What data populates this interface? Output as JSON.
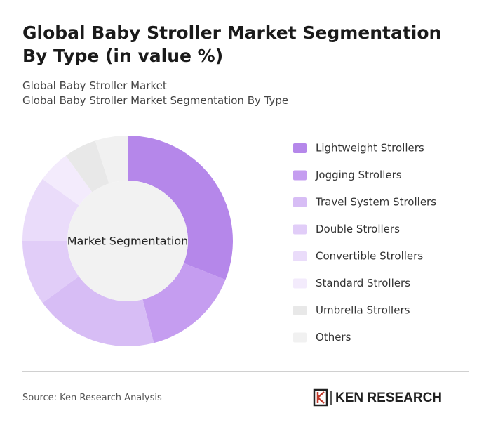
{
  "header": {
    "title": "Global Baby Stroller Market Segmentation By Type (in value %)",
    "subtitle_lines": [
      "Global Baby Stroller Market",
      "Global Baby Stroller Market Segmentation By Type"
    ]
  },
  "chart_data": {
    "type": "donut",
    "center_label": "Market Segmentation",
    "categories": [
      "Lightweight Strollers",
      "Jogging Strollers",
      "Travel System Strollers",
      "Double Strollers",
      "Convertible Strollers",
      "Standard Strollers",
      "Umbrella Strollers",
      "Others"
    ],
    "values": [
      31,
      15,
      19,
      10,
      10,
      5,
      5,
      5
    ],
    "colors": [
      "#b587ea",
      "#c59df0",
      "#d7bdf5",
      "#e1cdf8",
      "#eadcfa",
      "#f3ebfc",
      "#e8e8e8",
      "#f1f1f1"
    ]
  },
  "footer": {
    "source": "Source: Ken Research Analysis",
    "logo": "KEN RESEARCH"
  }
}
